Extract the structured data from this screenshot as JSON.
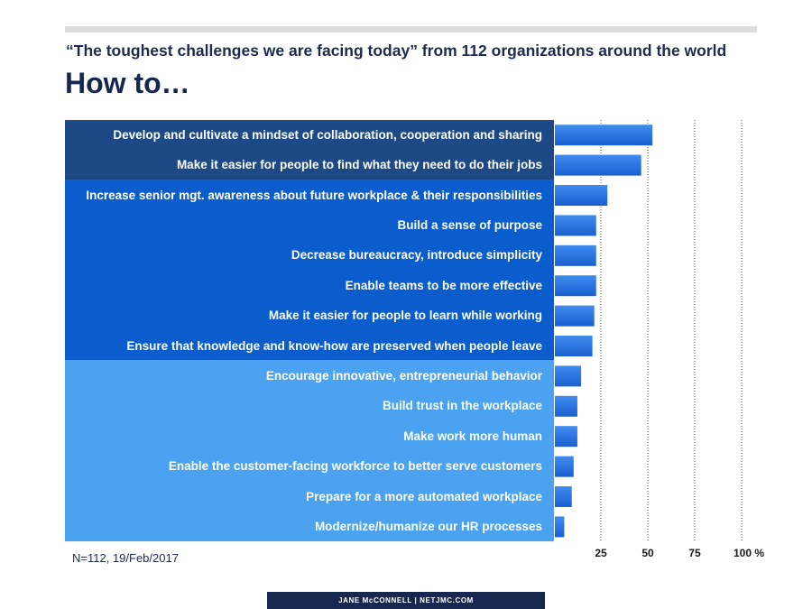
{
  "header": {
    "subtitle": "“The toughest challenges we are facing today” from 112 organizations around the world",
    "title": "How to…"
  },
  "note": "N=112, 19/Feb/2017",
  "footer": "JANE McCONNELL  |  NETJMC.COM",
  "colors": {
    "band_top": "#1d4a86",
    "band_mid": "#0b5ccc",
    "band_low": "#4aa2f0",
    "bar": "#1f6fe0",
    "title": "#16264d"
  },
  "chart_data": {
    "type": "bar",
    "orientation": "horizontal",
    "categories": [
      "Develop and cultivate a mindset of collaboration, cooperation and sharing",
      "Make it easier for people to find what they need to do their jobs",
      "Increase senior mgt. awareness about future workplace & their responsibilities",
      "Build a sense of purpose",
      "Decrease bureaucracy, introduce simplicity",
      "Enable teams to be more effective",
      "Make it easier for people to learn while working",
      "Ensure that knowledge and know-how are preserved when people leave",
      "Encourage innovative, entrepreneurial behavior",
      "Build trust in the workplace",
      "Make work more human",
      "Enable the customer-facing workforce to better serve customers",
      "Prepare for a more automated workplace",
      "Modernize/humanize our HR processes"
    ],
    "values": [
      52,
      46,
      28,
      22,
      22,
      22,
      21,
      20,
      14,
      12,
      12,
      10,
      9,
      5
    ],
    "xlim": [
      0,
      100
    ],
    "xticks": [
      25,
      50,
      75,
      100
    ],
    "xtick_labels": [
      "25",
      "50",
      "75",
      "100 %"
    ],
    "grid": "dotted vertical",
    "groups": [
      {
        "start": 0,
        "end": 1,
        "color": "#1d4a86"
      },
      {
        "start": 2,
        "end": 7,
        "color": "#0b5ccc"
      },
      {
        "start": 8,
        "end": 13,
        "color": "#4aa2f0"
      }
    ]
  }
}
